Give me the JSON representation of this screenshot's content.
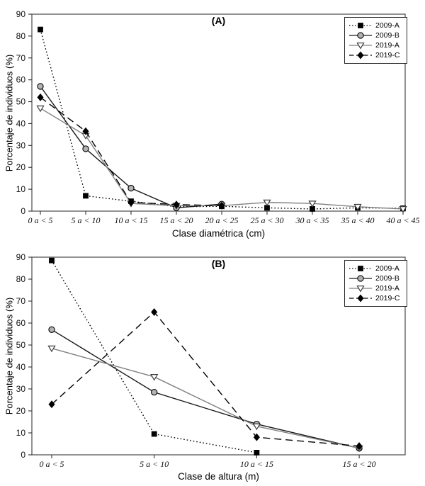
{
  "figure": {
    "background": "#ffffff",
    "axis_color": "#4a4a4a",
    "tick_color": "#333333"
  },
  "chart_data": [
    {
      "type": "line",
      "panel_label": "(A)",
      "xlabel": "Clase diamétrica (cm)",
      "ylabel": "Porcentaje de individuos (%)",
      "ylim": [
        0,
        90
      ],
      "ytick_step": 10,
      "yticks": [
        0,
        10,
        20,
        30,
        40,
        50,
        60,
        70,
        80,
        90
      ],
      "grid": false,
      "legend_position": "top-right",
      "categories": [
        "0 a < 5",
        "5 a < 10",
        "10 a < 15",
        "15 a < 20",
        "20 a < 25",
        "25 a < 30",
        "30 a < 35",
        "35 a < 40",
        "40 a < 45"
      ],
      "series": [
        {
          "name": "2009-A",
          "line_style": "dotted",
          "marker": "square",
          "color": "#000000",
          "marker_fill": "#000000",
          "marker_stroke": "#000000",
          "values": [
            83,
            7,
            4.5,
            2,
            2.2,
            1.5,
            1,
            1.5,
            1.3
          ]
        },
        {
          "name": "2009-B",
          "line_style": "solid",
          "marker": "circle",
          "color": "#1a1a1a",
          "marker_fill": "#b3b3b3",
          "marker_stroke": "#000000",
          "values": [
            57,
            28.5,
            10.5,
            1.5,
            3.2,
            null,
            null,
            null,
            null
          ]
        },
        {
          "name": "2019-A",
          "line_style": "solid",
          "marker": "triangle-down",
          "color": "#808080",
          "marker_fill": "#ffffff",
          "marker_stroke": "#3d3d3d",
          "values": [
            47,
            34.5,
            3.5,
            2.5,
            2.5,
            4,
            3.5,
            2,
            1
          ]
        },
        {
          "name": "2019-C",
          "line_style": "dashed",
          "marker": "diamond",
          "color": "#000000",
          "marker_fill": "#000000",
          "marker_stroke": "#000000",
          "values": [
            52,
            36.5,
            4,
            3,
            2.5,
            null,
            null,
            null,
            null
          ]
        }
      ]
    },
    {
      "type": "line",
      "panel_label": "(B)",
      "xlabel": "Clase de altura (m)",
      "ylabel": "Porcentaje de individuos (%)",
      "ylim": [
        0,
        90
      ],
      "ytick_step": 10,
      "yticks": [
        0,
        10,
        20,
        30,
        40,
        50,
        60,
        70,
        80,
        90
      ],
      "grid": false,
      "legend_position": "top-right",
      "categories": [
        "0 a < 5",
        "5 a < 10",
        "10 a < 15",
        "15 a < 20"
      ],
      "series": [
        {
          "name": "2009-A",
          "line_style": "dotted",
          "marker": "square",
          "color": "#000000",
          "marker_fill": "#000000",
          "marker_stroke": "#000000",
          "values": [
            88.5,
            9.5,
            1,
            null
          ]
        },
        {
          "name": "2009-B",
          "line_style": "solid",
          "marker": "circle",
          "color": "#1a1a1a",
          "marker_fill": "#b3b3b3",
          "marker_stroke": "#000000",
          "values": [
            57,
            28.5,
            14,
            3
          ]
        },
        {
          "name": "2019-A",
          "line_style": "solid",
          "marker": "triangle-down",
          "color": "#808080",
          "marker_fill": "#ffffff",
          "marker_stroke": "#3d3d3d",
          "values": [
            48.5,
            35.5,
            13,
            3
          ]
        },
        {
          "name": "2019-C",
          "line_style": "dashed",
          "marker": "diamond",
          "color": "#000000",
          "marker_fill": "#000000",
          "marker_stroke": "#000000",
          "values": [
            23,
            65,
            8,
            4
          ]
        }
      ]
    }
  ]
}
